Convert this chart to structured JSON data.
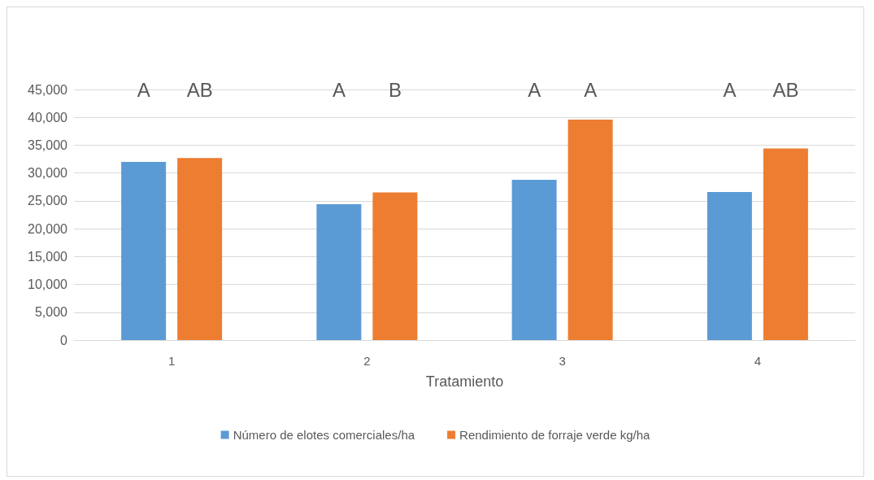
{
  "chart_data": {
    "type": "bar",
    "xlabel": "Tratamiento",
    "categories": [
      "1",
      "2",
      "3",
      "4"
    ],
    "series": [
      {
        "name": "Número de elotes comerciales/ha",
        "color": "#5b9bd5",
        "values": [
          32000,
          24400,
          28800,
          26600
        ]
      },
      {
        "name": "Rendimiento de forraje verde kg/ha",
        "color": "#ed7d31",
        "values": [
          32700,
          26500,
          39600,
          34400
        ]
      }
    ],
    "ylim": [
      0,
      45000
    ],
    "yticks": [
      {
        "value": 0,
        "label": "0"
      },
      {
        "value": 5000,
        "label": "5,000"
      },
      {
        "value": 10000,
        "label": "10,000"
      },
      {
        "value": 15000,
        "label": "15,000"
      },
      {
        "value": 20000,
        "label": "20,000"
      },
      {
        "value": 25000,
        "label": "25,000"
      },
      {
        "value": 30000,
        "label": "30,000"
      },
      {
        "value": 35000,
        "label": "35,000"
      },
      {
        "value": 40000,
        "label": "40,000"
      },
      {
        "value": 45000,
        "label": "45,000"
      }
    ],
    "grid": "y",
    "legend": "bottom",
    "annotations": [
      "A",
      "AB",
      "A",
      "B",
      "A",
      "A",
      "A",
      "AB"
    ]
  }
}
